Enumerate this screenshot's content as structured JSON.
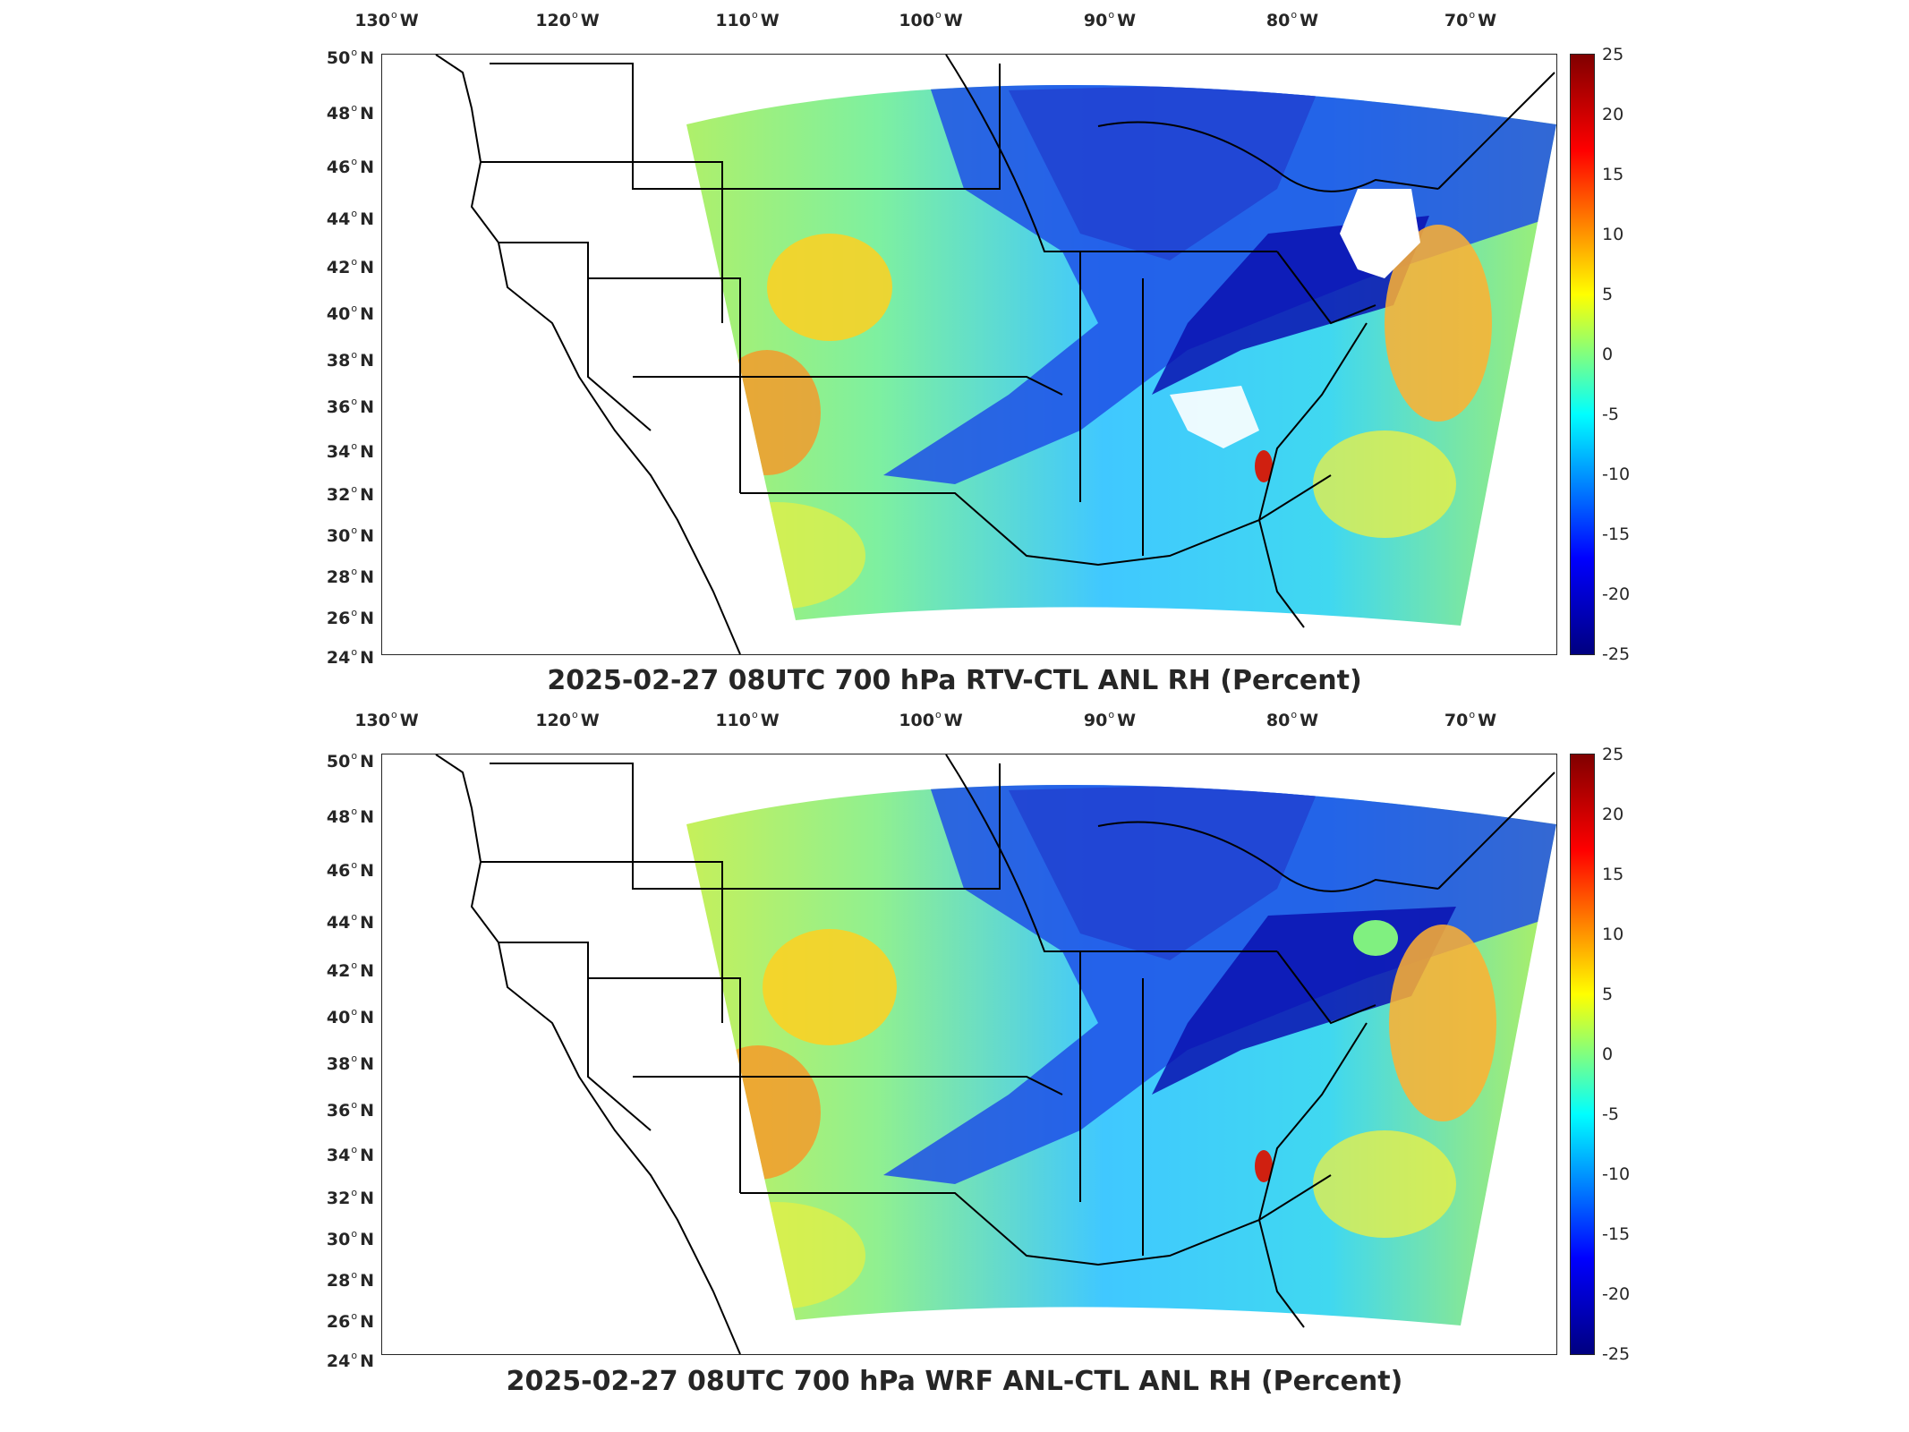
{
  "panels": [
    {
      "title": "2025-02-27 08UTC 700 hPa RTV-CTL ANL RH (Percent)",
      "lon_labels": [
        "130",
        "120",
        "110",
        "100",
        "90",
        "80",
        "70"
      ],
      "lon_suffix": "W",
      "lat_labels": [
        "50",
        "48",
        "46",
        "44",
        "42",
        "40",
        "38",
        "36",
        "34",
        "32",
        "30",
        "28",
        "26",
        "24"
      ],
      "lat_suffix": "N",
      "colorbar_ticks": [
        "25",
        "20",
        "15",
        "10",
        "5",
        "0",
        "-5",
        "-10",
        "-15",
        "-20",
        "-25"
      ]
    },
    {
      "title": "2025-02-27 08UTC 700 hPa WRF ANL-CTL ANL RH (Percent)",
      "lon_labels": [
        "130",
        "120",
        "110",
        "100",
        "90",
        "80",
        "70"
      ],
      "lon_suffix": "W",
      "lat_labels": [
        "50",
        "48",
        "46",
        "44",
        "42",
        "40",
        "38",
        "36",
        "34",
        "32",
        "30",
        "28",
        "26",
        "24"
      ],
      "lat_suffix": "N",
      "colorbar_ticks": [
        "25",
        "20",
        "15",
        "10",
        "5",
        "0",
        "-5",
        "-10",
        "-15",
        "-20",
        "-25"
      ]
    }
  ],
  "colors": {
    "positive_max": "#800000",
    "zero": "#80ff80",
    "negative_max": "#000080"
  }
}
